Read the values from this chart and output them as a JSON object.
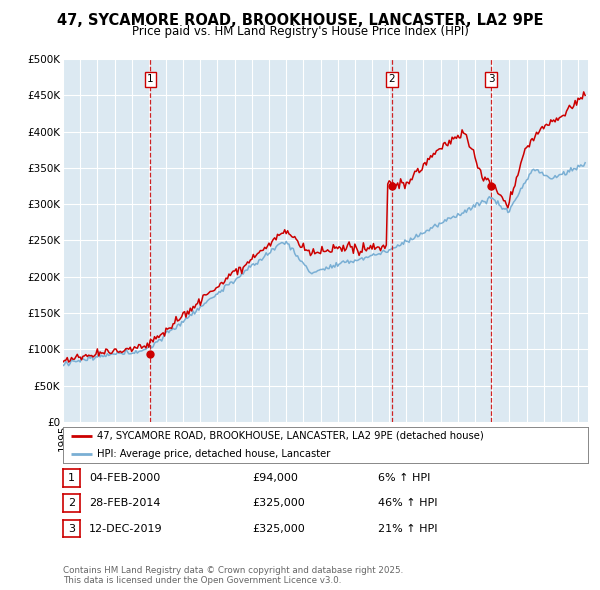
{
  "title": "47, SYCAMORE ROAD, BROOKHOUSE, LANCASTER, LA2 9PE",
  "subtitle": "Price paid vs. HM Land Registry's House Price Index (HPI)",
  "ylim": [
    0,
    500000
  ],
  "yticks": [
    0,
    50000,
    100000,
    150000,
    200000,
    250000,
    300000,
    350000,
    400000,
    450000,
    500000
  ],
  "ytick_labels": [
    "£0",
    "£50K",
    "£100K",
    "£150K",
    "£200K",
    "£250K",
    "£300K",
    "£350K",
    "£400K",
    "£450K",
    "£500K"
  ],
  "plot_bg_color": "#dce9f2",
  "red_line_color": "#cc0000",
  "blue_line_color": "#7aafd4",
  "transaction_dates": [
    "2000-02-04",
    "2014-02-28",
    "2019-12-12"
  ],
  "transaction_prices": [
    94000,
    325000,
    325000
  ],
  "transaction_labels": [
    "1",
    "2",
    "3"
  ],
  "vline_color": "#cc0000",
  "marker_color": "#cc0000",
  "legend_label_red": "47, SYCAMORE ROAD, BROOKHOUSE, LANCASTER, LA2 9PE (detached house)",
  "legend_label_blue": "HPI: Average price, detached house, Lancaster",
  "table_data": [
    {
      "num": "1",
      "date": "04-FEB-2000",
      "price": "£94,000",
      "change": "6% ↑ HPI"
    },
    {
      "num": "2",
      "date": "28-FEB-2014",
      "price": "£325,000",
      "change": "46% ↑ HPI"
    },
    {
      "num": "3",
      "date": "12-DEC-2019",
      "price": "£325,000",
      "change": "21% ↑ HPI"
    }
  ],
  "footer": "Contains HM Land Registry data © Crown copyright and database right 2025.\nThis data is licensed under the Open Government Licence v3.0."
}
